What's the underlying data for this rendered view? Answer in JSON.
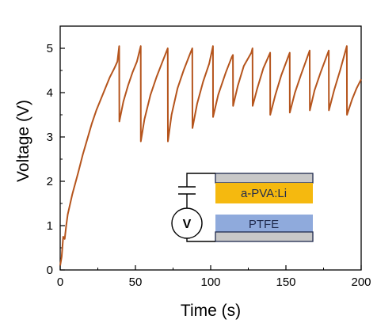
{
  "chart_data": {
    "type": "line",
    "title": "",
    "xlabel": "Time (s)",
    "ylabel": "Voltage (V)",
    "xlim": [
      0,
      200
    ],
    "ylim": [
      0,
      5.5
    ],
    "x_ticks": [
      "0",
      "50",
      "100",
      "150",
      "200"
    ],
    "y_ticks": [
      "0",
      "1",
      "2",
      "3",
      "4",
      "5"
    ],
    "grid": false,
    "legend": "none",
    "series": [
      {
        "color": "#b5541c",
        "x": [
          0,
          1,
          2,
          3,
          4,
          5,
          6,
          8,
          10,
          12,
          15,
          18,
          21,
          24,
          27,
          30,
          33,
          36,
          38,
          39.2,
          39.3,
          42,
          45,
          48,
          51,
          53.5,
          53.6,
          56,
          60,
          64,
          68,
          71.5,
          71.6,
          74,
          78,
          82,
          86,
          87.8,
          87.9,
          91,
          95,
          99,
          101.5,
          101.6,
          105,
          110,
          114,
          114.8,
          114.9,
          118,
          122,
          127,
          127.8,
          127.9,
          131,
          135,
          139.5,
          139.6,
          143,
          147,
          152.5,
          152.6,
          156,
          160,
          165.8,
          165.9,
          169,
          173,
          178.5,
          178.6,
          182,
          186,
          190.5,
          190.6,
          194,
          197,
          200
        ],
        "values": [
          0.1,
          0.3,
          0.75,
          0.7,
          1.0,
          1.25,
          1.4,
          1.7,
          1.95,
          2.2,
          2.6,
          2.95,
          3.3,
          3.6,
          3.85,
          4.1,
          4.35,
          4.55,
          4.7,
          5.05,
          3.35,
          3.8,
          4.15,
          4.45,
          4.7,
          5.05,
          2.9,
          3.4,
          3.95,
          4.35,
          4.7,
          5.0,
          2.9,
          3.5,
          4.1,
          4.5,
          4.85,
          5.0,
          3.2,
          3.75,
          4.25,
          4.65,
          5.05,
          3.45,
          3.95,
          4.45,
          4.8,
          4.85,
          3.7,
          4.15,
          4.6,
          4.9,
          5.0,
          3.7,
          4.1,
          4.55,
          4.9,
          3.5,
          3.95,
          4.4,
          4.9,
          3.55,
          4.0,
          4.4,
          4.95,
          3.6,
          4.05,
          4.45,
          4.95,
          3.6,
          4.05,
          4.5,
          5.05,
          3.5,
          3.85,
          4.1,
          4.3
        ]
      }
    ],
    "inset": {
      "top_layer_label": "a-PVA:Li",
      "bottom_layer_label": "PTFE",
      "meter_label": "V",
      "colors": {
        "top_layer": "#f5b90f",
        "bottom_layer": "#8faadc",
        "electrode": "#c8c8c8"
      }
    }
  }
}
